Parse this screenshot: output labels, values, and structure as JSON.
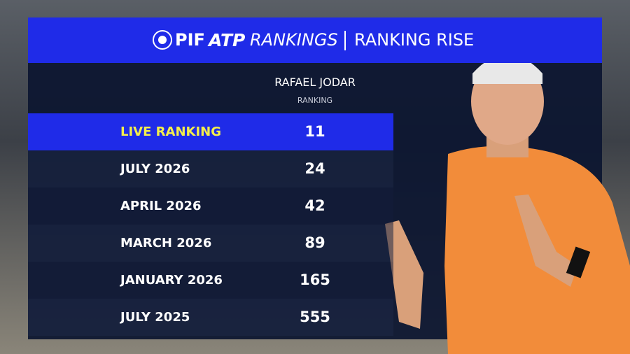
{
  "header": {
    "brand": "PIF",
    "atp": "ATP",
    "rankings": "RANKINGS",
    "title": "RANKING RISE"
  },
  "table": {
    "player": "RAFAEL JODAR",
    "column": "RANKING",
    "rows": [
      [
        "LIVE RANKING",
        11
      ],
      [
        "JULY 2026",
        24
      ],
      [
        "APRIL 2026",
        42
      ],
      [
        "MARCH 2026",
        89
      ],
      [
        "JANUARY 2026",
        165
      ],
      [
        "JULY 2025",
        555
      ]
    ]
  }
}
